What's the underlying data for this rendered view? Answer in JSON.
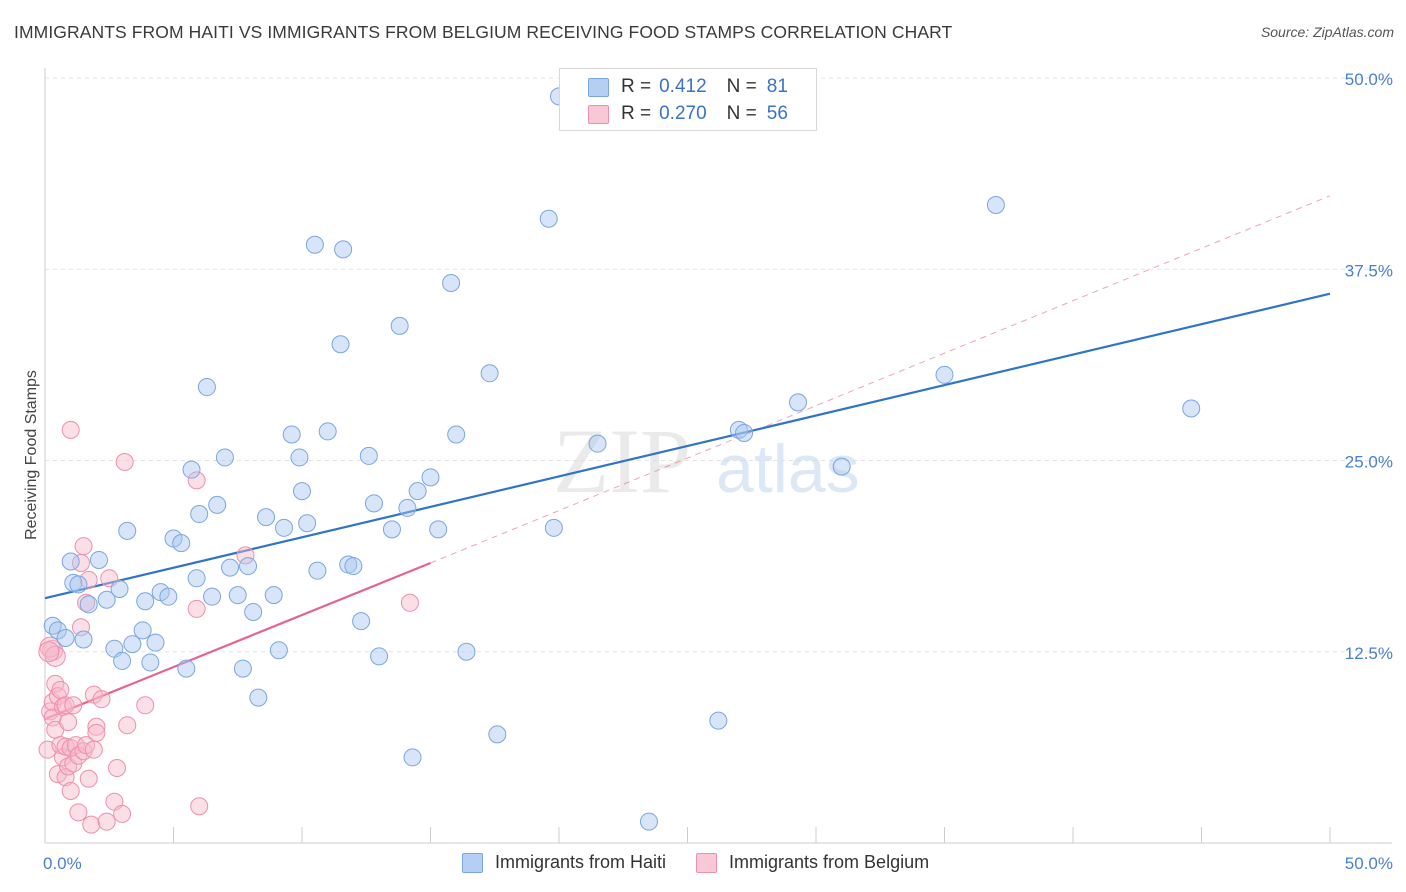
{
  "title": "IMMIGRANTS FROM HAITI VS IMMIGRANTS FROM BELGIUM RECEIVING FOOD STAMPS CORRELATION CHART",
  "source": "Source: ZipAtlas.com",
  "watermark": {
    "zip": "ZIP",
    "atlas": "atlas"
  },
  "legend": {
    "rows": [
      {
        "r_label": "R =",
        "r_value": "0.412",
        "n_label": "N =",
        "n_value": "81"
      },
      {
        "r_label": "R =",
        "r_value": "0.270",
        "n_label": "N =",
        "n_value": "56"
      }
    ]
  },
  "colors": {
    "haiti_fill": "#a9c6ef",
    "haiti_stroke": "#7aa6e0",
    "haiti_line": "#2f74c9",
    "belgium_fill": "#f6b7c9",
    "belgium_stroke": "#ee8fab",
    "belgium_line": "#e4648d",
    "tick_text": "#4a7fd0",
    "grid": "#e3e3e3"
  },
  "chart_data": {
    "type": "scatter",
    "title": "IMMIGRANTS FROM HAITI VS IMMIGRANTS FROM BELGIUM RECEIVING FOOD STAMPS CORRELATION CHART",
    "xlabel": "",
    "ylabel": "Receiving Food Stamps",
    "xlim": [
      0,
      50
    ],
    "ylim": [
      0,
      50
    ],
    "x_tick_labels": [
      "0.0%",
      "50.0%"
    ],
    "y_tick_values": [
      12.5,
      25.0,
      37.5,
      50.0
    ],
    "y_tick_labels": [
      "12.5%",
      "25.0%",
      "37.5%",
      "50.0%"
    ],
    "series": [
      {
        "name": "Immigrants from Haiti",
        "r": 0.412,
        "n": 81,
        "trend": {
          "x0": 0,
          "y0": 16.0,
          "x1": 50,
          "y1": 35.9,
          "style": "solid"
        },
        "points": [
          [
            0.3,
            14.2
          ],
          [
            0.5,
            13.9
          ],
          [
            0.8,
            13.4
          ],
          [
            1.0,
            18.4
          ],
          [
            1.1,
            17.0
          ],
          [
            1.3,
            16.9
          ],
          [
            1.5,
            13.3
          ],
          [
            1.7,
            15.6
          ],
          [
            2.1,
            18.5
          ],
          [
            2.4,
            15.9
          ],
          [
            2.7,
            12.7
          ],
          [
            2.9,
            16.6
          ],
          [
            3.0,
            11.9
          ],
          [
            3.2,
            20.4
          ],
          [
            3.4,
            13.0
          ],
          [
            3.8,
            13.9
          ],
          [
            3.9,
            15.8
          ],
          [
            4.1,
            11.8
          ],
          [
            4.3,
            13.1
          ],
          [
            4.5,
            16.4
          ],
          [
            4.8,
            16.1
          ],
          [
            5.0,
            19.9
          ],
          [
            5.3,
            19.6
          ],
          [
            5.5,
            11.4
          ],
          [
            5.7,
            24.4
          ],
          [
            5.9,
            17.3
          ],
          [
            6.0,
            21.5
          ],
          [
            6.3,
            29.8
          ],
          [
            6.5,
            16.1
          ],
          [
            6.7,
            22.1
          ],
          [
            7.0,
            25.2
          ],
          [
            7.2,
            18.0
          ],
          [
            7.5,
            16.2
          ],
          [
            7.7,
            11.4
          ],
          [
            7.9,
            18.1
          ],
          [
            8.1,
            15.1
          ],
          [
            8.3,
            9.5
          ],
          [
            8.6,
            21.3
          ],
          [
            8.9,
            16.2
          ],
          [
            9.1,
            12.6
          ],
          [
            9.3,
            20.6
          ],
          [
            9.6,
            26.7
          ],
          [
            9.9,
            25.2
          ],
          [
            10.0,
            23.0
          ],
          [
            10.2,
            20.9
          ],
          [
            10.5,
            39.1
          ],
          [
            10.6,
            17.8
          ],
          [
            11.0,
            26.9
          ],
          [
            11.5,
            32.6
          ],
          [
            11.6,
            38.8
          ],
          [
            11.8,
            18.2
          ],
          [
            12.0,
            18.1
          ],
          [
            12.3,
            14.5
          ],
          [
            12.6,
            25.3
          ],
          [
            12.8,
            22.2
          ],
          [
            13.0,
            12.2
          ],
          [
            13.5,
            20.5
          ],
          [
            13.8,
            33.8
          ],
          [
            14.1,
            21.9
          ],
          [
            14.3,
            5.6
          ],
          [
            14.5,
            23.0
          ],
          [
            15.0,
            23.9
          ],
          [
            15.3,
            20.5
          ],
          [
            15.8,
            36.6
          ],
          [
            16.0,
            26.7
          ],
          [
            16.4,
            12.5
          ],
          [
            17.3,
            30.7
          ],
          [
            17.6,
            7.1
          ],
          [
            19.6,
            40.8
          ],
          [
            19.8,
            20.6
          ],
          [
            20.0,
            48.8
          ],
          [
            21.5,
            26.1
          ],
          [
            23.5,
            1.4
          ],
          [
            26.2,
            8.0
          ],
          [
            27.0,
            27.0
          ],
          [
            27.2,
            26.8
          ],
          [
            29.3,
            28.8
          ],
          [
            31.0,
            24.6
          ],
          [
            35.0,
            30.6
          ],
          [
            37.0,
            41.7
          ],
          [
            44.6,
            28.4
          ]
        ]
      },
      {
        "name": "Immigrants from Belgium",
        "r": 0.27,
        "n": 56,
        "trend": {
          "x0": 0,
          "y0": 8.1,
          "x1": 15,
          "y1": 18.3,
          "style": "solid"
        },
        "trend_dashed": {
          "x0": 15,
          "y0": 18.3,
          "x1": 50,
          "y1": 42.3
        },
        "points": [
          [
            0.1,
            6.1
          ],
          [
            0.2,
            8.6
          ],
          [
            0.3,
            9.2
          ],
          [
            0.3,
            8.2
          ],
          [
            0.4,
            10.4
          ],
          [
            0.4,
            7.4
          ],
          [
            0.5,
            9.6
          ],
          [
            0.5,
            4.5
          ],
          [
            0.6,
            6.4
          ],
          [
            0.6,
            10.0
          ],
          [
            0.7,
            8.9
          ],
          [
            0.7,
            5.6
          ],
          [
            0.8,
            6.3
          ],
          [
            0.8,
            9.0
          ],
          [
            0.8,
            4.3
          ],
          [
            0.9,
            5.0
          ],
          [
            0.9,
            7.9
          ],
          [
            1.0,
            6.2
          ],
          [
            1.0,
            3.4
          ],
          [
            1.0,
            27.0
          ],
          [
            1.1,
            5.2
          ],
          [
            1.1,
            9.0
          ],
          [
            1.2,
            6.4
          ],
          [
            1.3,
            5.7
          ],
          [
            1.3,
            2.0
          ],
          [
            1.4,
            14.1
          ],
          [
            1.4,
            18.3
          ],
          [
            1.5,
            19.4
          ],
          [
            1.5,
            6.0
          ],
          [
            1.6,
            15.7
          ],
          [
            1.6,
            6.4
          ],
          [
            1.7,
            4.2
          ],
          [
            1.7,
            17.2
          ],
          [
            1.8,
            1.2
          ],
          [
            1.9,
            6.1
          ],
          [
            1.9,
            9.7
          ],
          [
            2.0,
            7.6
          ],
          [
            2.0,
            7.2
          ],
          [
            2.2,
            9.4
          ],
          [
            2.4,
            1.4
          ],
          [
            2.5,
            17.3
          ],
          [
            2.7,
            2.7
          ],
          [
            2.8,
            4.9
          ],
          [
            3.0,
            1.9
          ],
          [
            3.1,
            24.9
          ],
          [
            3.2,
            7.7
          ],
          [
            3.9,
            9.0
          ],
          [
            5.9,
            15.3
          ],
          [
            5.9,
            23.7
          ],
          [
            6.0,
            2.4
          ],
          [
            7.8,
            18.8
          ],
          [
            14.2,
            15.7
          ],
          [
            0.3,
            12.6
          ],
          [
            0.2,
            12.8
          ],
          [
            0.4,
            12.2
          ],
          [
            0.15,
            12.5
          ]
        ]
      }
    ]
  },
  "bottom_legend": [
    "Immigrants from Haiti",
    "Immigrants from Belgium"
  ]
}
